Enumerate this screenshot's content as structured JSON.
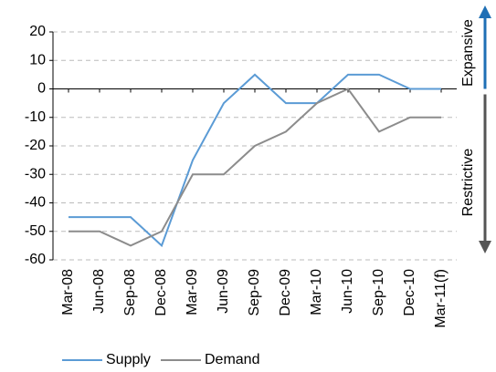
{
  "chart_data": {
    "type": "line",
    "categories": [
      "Mar-08",
      "Jun-08",
      "Sep-08",
      "Dec-08",
      "Mar-09",
      "Jun-09",
      "Sep-09",
      "Dec-09",
      "Mar-10",
      "Jun-10",
      "Sep-10",
      "Dec-10",
      "Mar-11(f)"
    ],
    "series": [
      {
        "name": "Supply",
        "color": "#5b9bd5",
        "values": [
          -45,
          -45,
          -45,
          -55,
          -25,
          -5,
          5,
          -5,
          -5,
          5,
          5,
          0,
          0
        ]
      },
      {
        "name": "Demand",
        "color": "#8c8c8c",
        "values": [
          -50,
          -50,
          -55,
          -50,
          -30,
          -30,
          -20,
          -15,
          -5,
          0,
          -15,
          -10,
          -10
        ]
      }
    ],
    "ylim": [
      -60,
      20
    ],
    "yticks": [
      -60,
      -50,
      -40,
      -30,
      -20,
      -10,
      0,
      10,
      20
    ],
    "grid": true,
    "annotations": [
      "Expansive",
      "Restrictive"
    ],
    "legend": "bottom"
  }
}
